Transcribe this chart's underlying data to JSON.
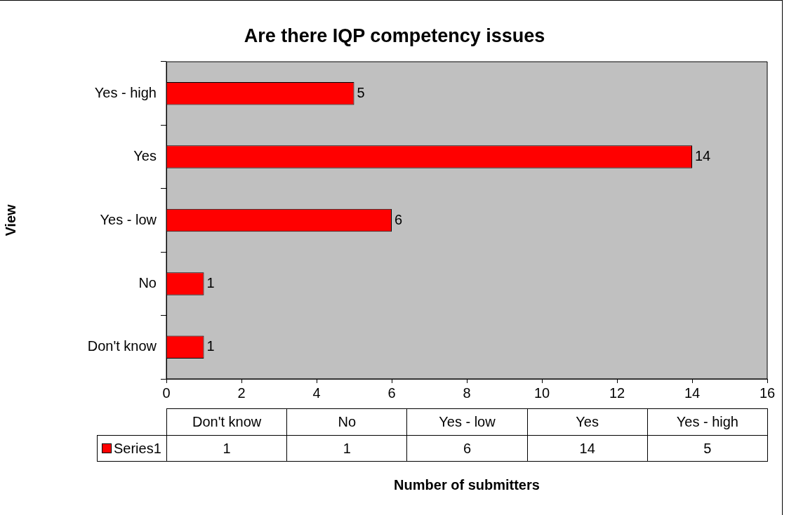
{
  "chart_data": {
    "type": "bar",
    "orientation": "horizontal",
    "title": "Are there IQP competency issues",
    "ylabel": "View",
    "categories": [
      "Yes - high",
      "Yes",
      "Yes - low",
      "No",
      "Don't know"
    ],
    "series": [
      {
        "name": "Series1",
        "color": "#ff0000",
        "values": [
          5,
          14,
          6,
          1,
          1
        ],
        "value_labels": [
          "5",
          "14",
          "6",
          "1",
          "1"
        ]
      }
    ],
    "xlim": [
      0,
      16
    ],
    "xticks": [
      0,
      2,
      4,
      6,
      8,
      10,
      12,
      14,
      16
    ],
    "legend": "bottom",
    "annotations": [
      "Number of submitters"
    ]
  }
}
